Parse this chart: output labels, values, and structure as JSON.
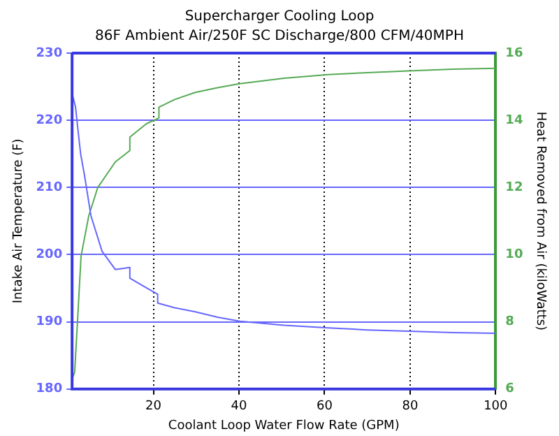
{
  "chart_data": {
    "type": "line",
    "title": "Supercharger Cooling Loop",
    "subtitle": "86F Ambient Air/250F SC Discharge/800 CFM/40MPH",
    "xlabel": "Coolant Loop Water Flow Rate (GPM)",
    "ylabel": "Intake Air Temperature (F)",
    "y2label": "Heat Removed from Air (kiloWatts)",
    "xlim": [
      1,
      100
    ],
    "xticks": [
      20,
      40,
      60,
      80,
      100
    ],
    "ylim": [
      180,
      230
    ],
    "yticks": [
      180,
      190,
      200,
      210,
      220,
      230
    ],
    "y2lim": [
      6,
      16
    ],
    "y2ticks": [
      6,
      8,
      10,
      12,
      14,
      16
    ],
    "grid": true,
    "legend": false,
    "marker": "none",
    "line_style": "solid",
    "series": [
      {
        "color": "#6666ff",
        "x": [
          1,
          1.8,
          2.3,
          3,
          3.9,
          5.4,
          8,
          11.1,
          14.5,
          14.5,
          18,
          21,
          21,
          25,
          29.8,
          35,
          40.2,
          50.5,
          60.9,
          70,
          79.6,
          90,
          100
        ],
        "values": [
          224,
          222,
          219,
          215,
          211.8,
          205.8,
          200.5,
          197.8,
          198.1,
          196.5,
          195.2,
          194.1,
          192.8,
          192.1,
          191.5,
          190.7,
          190.1,
          189.5,
          189.1,
          188.8,
          188.6,
          188.4,
          188.3
        ]
      },
      {
        "color": "#55aa55",
        "axis": "y2",
        "x": [
          1,
          1.6,
          2.3,
          3.1,
          4.9,
          7,
          11.1,
          14.5,
          14.5,
          18.4,
          21.3,
          21.3,
          25,
          29.8,
          35,
          40.2,
          50.5,
          60.9,
          70,
          79.6,
          90,
          100
        ],
        "values": [
          6.3,
          6.5,
          8.1,
          9.96,
          11.16,
          12,
          12.76,
          13.1,
          13.5,
          13.9,
          14.07,
          14.39,
          14.62,
          14.83,
          14.97,
          15.09,
          15.25,
          15.36,
          15.42,
          15.47,
          15.52,
          15.55
        ]
      }
    ]
  }
}
